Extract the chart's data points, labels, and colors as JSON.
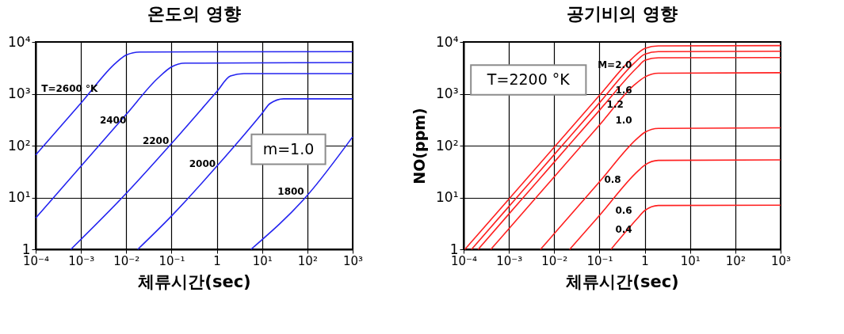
{
  "chart_data": [
    {
      "type": "line",
      "title": "온도의 영향",
      "xlabel": "체류시간(sec)",
      "log": "xy",
      "grid": true,
      "xlim": [
        0.0001,
        1000
      ],
      "ylim": [
        1,
        10000
      ],
      "xticks": [
        {
          "value": 0.0001,
          "label": "10⁻⁴"
        },
        {
          "value": 0.001,
          "label": "10⁻³"
        },
        {
          "value": 0.01,
          "label": "10⁻²"
        },
        {
          "value": 0.1,
          "label": "10⁻¹"
        },
        1,
        {
          "value": 10,
          "label": "10¹"
        },
        {
          "value": 100,
          "label": "10²"
        },
        {
          "value": 1000,
          "label": "10³"
        }
      ],
      "yticks": [
        1,
        {
          "value": 10,
          "label": "10¹"
        },
        {
          "value": 100,
          "label": "10²"
        },
        {
          "value": 1000,
          "label": "10³"
        },
        {
          "value": 10000,
          "label": "10⁴"
        }
      ],
      "series": [
        {
          "name": "T=2600 °K",
          "color": "#2424f0",
          "x": [
            0.0001,
            0.001,
            0.006,
            0.01,
            0.02,
            1000
          ],
          "values": [
            66,
            660,
            4000,
            5600,
            6400,
            6500
          ]
        },
        {
          "name": "2400",
          "color": "#2424f0",
          "x": [
            0.0001,
            0.001,
            0.01,
            0.05,
            0.1,
            0.2,
            1000
          ],
          "values": [
            4,
            40,
            400,
            2000,
            3300,
            3900,
            4000
          ]
        },
        {
          "name": "2200",
          "color": "#2424f0",
          "x": [
            0.0006,
            0.01,
            0.1,
            1,
            2,
            4,
            1000
          ],
          "values": [
            1,
            12,
            110,
            1100,
            2200,
            2450,
            2450
          ]
        },
        {
          "name": "2000",
          "color": "#2424f0",
          "x": [
            0.018,
            0.1,
            1,
            10,
            15,
            30,
            1000
          ],
          "values": [
            1,
            4.4,
            40,
            420,
            650,
            800,
            800
          ]
        },
        {
          "name": "1800",
          "color": "#2424f0",
          "x": [
            5.7,
            100,
            1000
          ],
          "values": [
            1,
            11,
            148
          ]
        }
      ],
      "annotations": [
        "m=1.0"
      ]
    },
    {
      "type": "line",
      "title": "공기비의 영향",
      "xlabel": "체류시간(sec)",
      "ylabel": "NO(ppm)",
      "log": "xy",
      "grid": true,
      "xlim": [
        0.0001,
        1000
      ],
      "ylim": [
        1,
        10000
      ],
      "xticks": [
        {
          "value": 0.0001,
          "label": "10⁻⁴"
        },
        {
          "value": 0.001,
          "label": "10⁻³"
        },
        {
          "value": 0.01,
          "label": "10⁻²"
        },
        {
          "value": 0.1,
          "label": "10⁻¹"
        },
        1,
        {
          "value": 10,
          "label": "10¹"
        },
        {
          "value": 100,
          "label": "10²"
        },
        {
          "value": 1000,
          "label": "10³"
        }
      ],
      "yticks": [
        1,
        {
          "value": 10,
          "label": "10¹"
        },
        {
          "value": 100,
          "label": "10²"
        },
        {
          "value": 1000,
          "label": "10³"
        },
        {
          "value": 10000,
          "label": "10⁴"
        }
      ],
      "series": [
        {
          "name": "M=2.0",
          "color": "#ff2020",
          "x": [
            0.000107,
            0.001,
            0.01,
            0.1,
            0.5,
            1,
            2,
            1000
          ],
          "values": [
            1,
            9.3,
            93,
            930,
            4600,
            7500,
            8400,
            8500
          ]
        },
        {
          "name": "1.6",
          "color": "#ff2020",
          "x": [
            0.00015,
            0.001,
            0.01,
            0.1,
            0.6,
            1,
            2,
            1000
          ],
          "values": [
            1,
            6.7,
            67,
            670,
            4000,
            5800,
            6500,
            6600
          ]
        },
        {
          "name": "1.2",
          "color": "#ff2020",
          "x": [
            0.00021,
            0.001,
            0.01,
            0.1,
            0.7,
            1,
            2,
            1000
          ],
          "values": [
            1,
            4.8,
            48,
            480,
            3300,
            4400,
            4950,
            5000
          ]
        },
        {
          "name": "1.0",
          "color": "#ff2020",
          "x": [
            0.0004,
            0.001,
            0.01,
            0.1,
            0.6,
            1,
            2,
            1000
          ],
          "values": [
            1,
            2.5,
            25,
            250,
            1500,
            2100,
            2500,
            2550
          ]
        },
        {
          "name": "0.8",
          "color": "#ff2020",
          "x": [
            0.005,
            0.01,
            0.1,
            0.7,
            1,
            2,
            1000
          ],
          "values": [
            1,
            2,
            20,
            140,
            180,
            215,
            220
          ]
        },
        {
          "name": "0.6",
          "color": "#ff2020",
          "x": [
            0.022,
            0.1,
            0.7,
            1,
            2,
            1000
          ],
          "values": [
            1,
            4.5,
            32,
            42,
            52,
            53
          ]
        },
        {
          "name": "0.4",
          "color": "#ff2020",
          "x": [
            0.18,
            0.7,
            1,
            2,
            1000
          ],
          "values": [
            1,
            4,
            5.6,
            7,
            7.1
          ]
        }
      ],
      "annotations": [
        "T=2200 °K"
      ]
    }
  ]
}
